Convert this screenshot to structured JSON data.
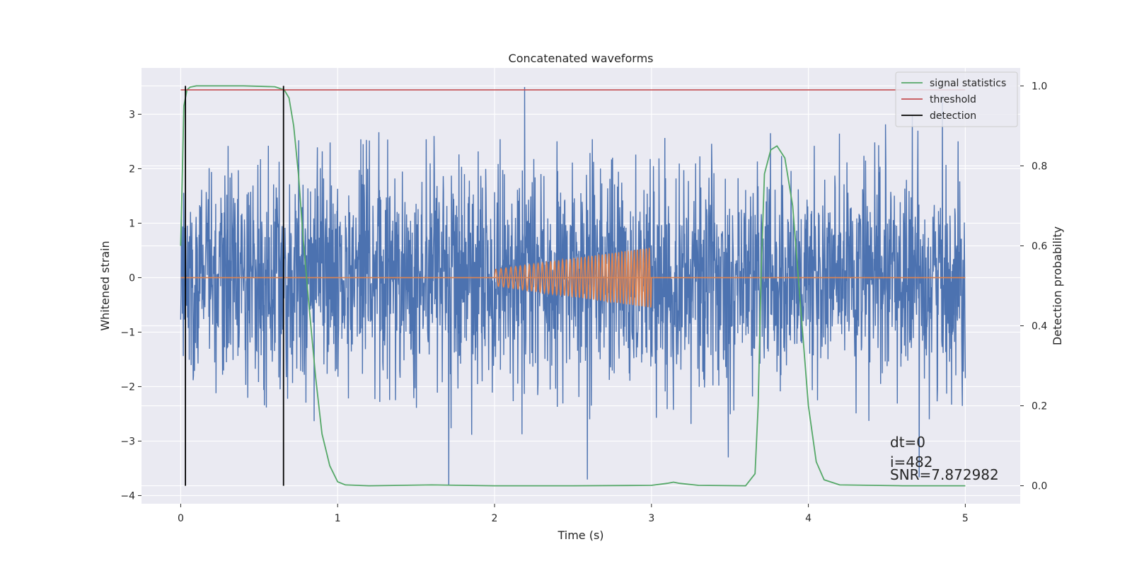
{
  "chart_data": {
    "type": "line",
    "title": "Concatenated waveforms",
    "xlabel": "Time (s)",
    "ylabel_left": "Whitened strain",
    "ylabel_right": "Detection probability",
    "xlim": [
      -0.25,
      5.35
    ],
    "ylim_left": [
      -4.15,
      3.85
    ],
    "ylim_right": [
      -0.045,
      1.045
    ],
    "x_ticks": [
      0,
      1,
      2,
      3,
      4,
      5
    ],
    "y_left_ticks": [
      -4,
      -3,
      -2,
      -1,
      0,
      1,
      2,
      3
    ],
    "y_right_ticks": [
      0.0,
      0.2,
      0.4,
      0.6,
      0.8,
      1.0
    ],
    "grid": true,
    "legend_position": "top-right",
    "series": [
      {
        "name": "",
        "axis": "left",
        "kind": "noise",
        "x_range": [
          0,
          5
        ],
        "amplitude_std": 1.0,
        "y_extremes": [
          -3.8,
          3.5
        ],
        "color": "#4c72b0"
      },
      {
        "name": "",
        "axis": "left",
        "kind": "chirp",
        "x_range": [
          2,
          3
        ],
        "envelope": {
          "x": [
            2.0,
            3.0
          ],
          "amplitude": [
            0.15,
            0.55
          ]
        },
        "baseline": 0,
        "baseline_x_range": [
          0,
          5
        ],
        "color": "#dd8452"
      },
      {
        "name": "signal statistics",
        "axis": "right",
        "color": "#55a868",
        "x": [
          0.0,
          0.02,
          0.04,
          0.06,
          0.1,
          0.2,
          0.4,
          0.6,
          0.66,
          0.69,
          0.72,
          0.75,
          0.78,
          0.82,
          0.86,
          0.9,
          0.95,
          1.0,
          1.05,
          1.2,
          1.6,
          2.0,
          2.5,
          3.0,
          3.1,
          3.14,
          3.18,
          3.3,
          3.6,
          3.66,
          3.68,
          3.7,
          3.72,
          3.76,
          3.8,
          3.85,
          3.9,
          3.95,
          4.0,
          4.05,
          4.1,
          4.2,
          4.6,
          5.0
        ],
        "y": [
          0.6,
          0.95,
          0.99,
          0.997,
          1.0,
          1.0,
          1.0,
          0.998,
          0.99,
          0.97,
          0.9,
          0.78,
          0.62,
          0.44,
          0.27,
          0.13,
          0.05,
          0.01,
          0.002,
          0.0,
          0.002,
          0.0,
          0.0,
          0.001,
          0.006,
          0.009,
          0.006,
          0.001,
          0.0,
          0.03,
          0.2,
          0.55,
          0.78,
          0.84,
          0.85,
          0.82,
          0.7,
          0.45,
          0.2,
          0.06,
          0.015,
          0.002,
          0.0,
          0.0
        ]
      },
      {
        "name": "threshold",
        "axis": "right",
        "color": "#c44e52",
        "x": [
          0,
          5
        ],
        "y": [
          0.99,
          0.99
        ]
      },
      {
        "name": "detection",
        "axis": "right",
        "color": "#000000",
        "vlines": [
          0.03,
          0.655
        ],
        "y_range": [
          0,
          1.0
        ]
      }
    ],
    "annotations": [
      "dt=0",
      "i=482",
      "SNR=7.872982"
    ]
  }
}
